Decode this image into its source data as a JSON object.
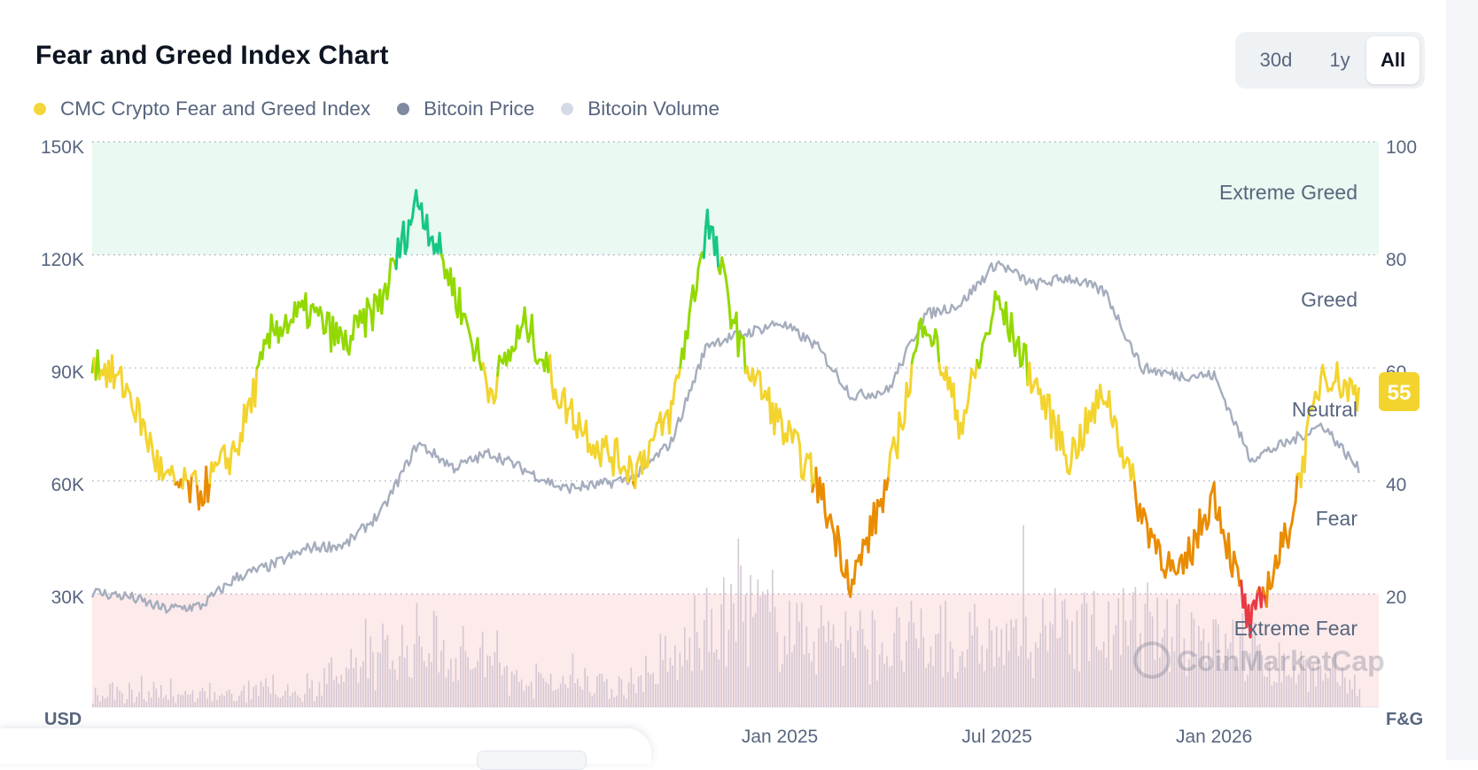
{
  "title": "Fear and Greed Index Chart",
  "range_tabs": [
    "30d",
    "1y",
    "All"
  ],
  "range_selected": "All",
  "legend": [
    {
      "label": "CMC Crypto Fear and Greed Index",
      "color": "#f5d63a"
    },
    {
      "label": "Bitcoin Price",
      "color": "#818aa0"
    },
    {
      "label": "Bitcoin Volume",
      "color": "#d5dae6"
    }
  ],
  "current_value": "55",
  "watermark": "CoinMarketCap",
  "chart_data": {
    "type": "line",
    "left_axis": {
      "label": "USD",
      "ticks": [
        "150K",
        "120K",
        "90K",
        "60K",
        "30K"
      ],
      "range": [
        0,
        150000
      ]
    },
    "right_axis": {
      "label": "F&G",
      "ticks": [
        "100",
        "80",
        "60",
        "40",
        "20"
      ],
      "range": [
        0,
        100
      ]
    },
    "x_ticks": [
      "Jan 2025",
      "Jul 2025",
      "Jan 2026"
    ],
    "x_range": [
      "2023-06",
      "2026-05"
    ],
    "zones": [
      {
        "name": "Extreme Greed",
        "from": 80,
        "to": 100,
        "color": "#eaf9f1"
      },
      {
        "name": "Greed",
        "from": 60,
        "to": 80
      },
      {
        "name": "Neutral",
        "from": 40,
        "to": 60
      },
      {
        "name": "Fear",
        "from": 20,
        "to": 40
      },
      {
        "name": "Extreme Fear",
        "from": 0,
        "to": 20,
        "color": "#fdeaea"
      }
    ],
    "grid": "dotted horizontal",
    "series": [
      {
        "name": "CMC Crypto Fear and Greed Index",
        "axis": "right",
        "dates": [
          "2023-06",
          "2023-07",
          "2023-08",
          "2023-09",
          "2023-10",
          "2023-11",
          "2023-12",
          "2024-01",
          "2024-02",
          "2024-03",
          "2024-04",
          "2024-05",
          "2024-06",
          "2024-07",
          "2024-08",
          "2024-09",
          "2024-10",
          "2024-11",
          "2024-12",
          "2025-01",
          "2025-02",
          "2025-03",
          "2025-04",
          "2025-05",
          "2025-06",
          "2025-07",
          "2025-08",
          "2025-09",
          "2025-10",
          "2025-11",
          "2025-12",
          "2026-01",
          "2026-02",
          "2026-03",
          "2026-04",
          "2026-05"
        ],
        "values": [
          62,
          56,
          40,
          38,
          46,
          67,
          70,
          64,
          72,
          90,
          74,
          56,
          68,
          54,
          46,
          42,
          52,
          86,
          62,
          50,
          40,
          22,
          40,
          70,
          50,
          72,
          58,
          44,
          56,
          34,
          22,
          38,
          14,
          30,
          60,
          55
        ]
      },
      {
        "name": "Bitcoin Price",
        "axis": "left",
        "dates": [
          "2023-06",
          "2023-07",
          "2023-08",
          "2023-09",
          "2023-10",
          "2023-11",
          "2023-12",
          "2024-01",
          "2024-02",
          "2024-03",
          "2024-04",
          "2024-05",
          "2024-06",
          "2024-07",
          "2024-08",
          "2024-09",
          "2024-10",
          "2024-11",
          "2024-12",
          "2025-01",
          "2025-02",
          "2025-03",
          "2025-04",
          "2025-05",
          "2025-06",
          "2025-07",
          "2025-08",
          "2025-09",
          "2025-10",
          "2025-11",
          "2025-12",
          "2026-01",
          "2026-02",
          "2026-03",
          "2026-04",
          "2026-05"
        ],
        "values": [
          30500,
          29300,
          26000,
          26800,
          34500,
          37700,
          42300,
          43000,
          51800,
          70000,
          63500,
          67500,
          62700,
          58000,
          58900,
          61000,
          70300,
          96400,
          99000,
          102000,
          96000,
          82500,
          84000,
          104000,
          107000,
          118000,
          112000,
          114000,
          110000,
          90000,
          88000,
          88000,
          66000,
          70000,
          75000,
          63000
        ]
      },
      {
        "name": "Bitcoin Volume",
        "axis": "left",
        "note_values": "relative daily bars",
        "dates": [
          "2023-06",
          "2023-09",
          "2023-12",
          "2024-03",
          "2024-06",
          "2024-09",
          "2024-12",
          "2025-03",
          "2025-06",
          "2025-09",
          "2025-12",
          "2026-03",
          "2026-05"
        ],
        "values": [
          2,
          2,
          3,
          10,
          4,
          4,
          14,
          10,
          9,
          12,
          12,
          6,
          4
        ]
      }
    ]
  }
}
